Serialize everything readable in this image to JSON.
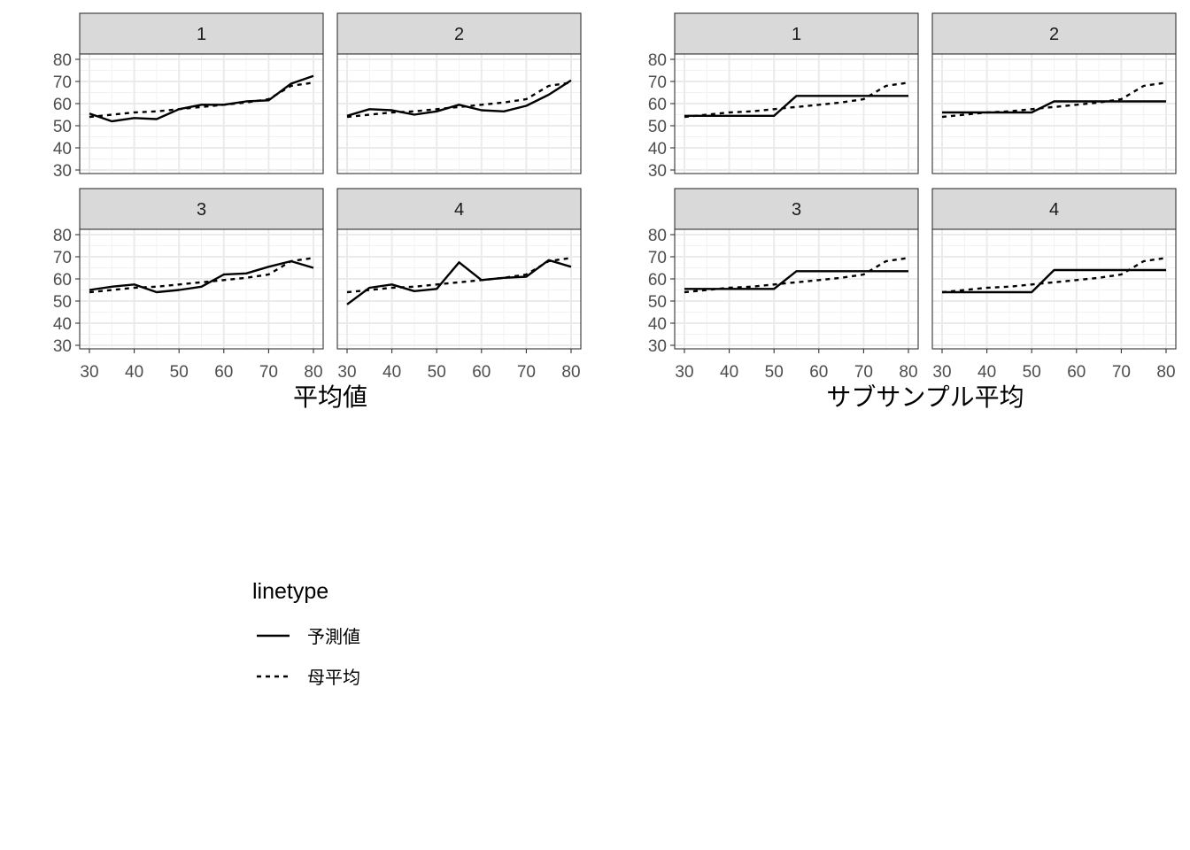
{
  "chart_data": [
    {
      "type": "line",
      "xlabel": "平均値",
      "ylabel": "",
      "xlim": [
        30,
        80
      ],
      "ylim": [
        30,
        80
      ],
      "x_ticks": [
        "30",
        "40",
        "50",
        "60",
        "70",
        "80"
      ],
      "y_ticks": [
        "30",
        "40",
        "50",
        "60",
        "70",
        "80"
      ],
      "grid": true,
      "panels": [
        {
          "label": "1",
          "series": [
            {
              "name": "予測値",
              "x": [
                30,
                35,
                40,
                45,
                50,
                55,
                60,
                65,
                70,
                75,
                80
              ],
              "y": [
                55.5,
                52.0,
                53.5,
                53.0,
                57.5,
                59.5,
                59.5,
                61.0,
                61.5,
                69.0,
                72.5
              ]
            },
            {
              "name": "母平均",
              "x": [
                30,
                35,
                40,
                45,
                50,
                55,
                60,
                65,
                70,
                75,
                80
              ],
              "y": [
                54.0,
                55.0,
                56.0,
                56.5,
                57.5,
                58.5,
                59.5,
                60.5,
                62.0,
                68.0,
                69.5
              ]
            }
          ]
        },
        {
          "label": "2",
          "series": [
            {
              "name": "予測値",
              "x": [
                30,
                35,
                40,
                45,
                50,
                55,
                60,
                65,
                70,
                75,
                80
              ],
              "y": [
                54.5,
                57.5,
                57.0,
                55.0,
                56.5,
                59.5,
                57.0,
                56.5,
                59.0,
                64.0,
                70.5
              ]
            },
            {
              "name": "母平均",
              "x": [
                30,
                35,
                40,
                45,
                50,
                55,
                60,
                65,
                70,
                75,
                80
              ],
              "y": [
                54.0,
                55.0,
                56.0,
                56.5,
                57.5,
                58.5,
                59.5,
                60.5,
                62.0,
                68.0,
                69.5
              ]
            }
          ]
        },
        {
          "label": "3",
          "series": [
            {
              "name": "予測値",
              "x": [
                30,
                35,
                40,
                45,
                50,
                55,
                60,
                65,
                70,
                75,
                80
              ],
              "y": [
                55.0,
                56.5,
                57.5,
                54.0,
                55.0,
                56.5,
                62.0,
                62.5,
                65.5,
                68.0,
                65.0
              ]
            },
            {
              "name": "母平均",
              "x": [
                30,
                35,
                40,
                45,
                50,
                55,
                60,
                65,
                70,
                75,
                80
              ],
              "y": [
                54.0,
                55.0,
                56.0,
                56.5,
                57.5,
                58.5,
                59.5,
                60.5,
                62.0,
                68.0,
                69.5
              ]
            }
          ]
        },
        {
          "label": "4",
          "series": [
            {
              "name": "予測値",
              "x": [
                30,
                35,
                40,
                45,
                50,
                55,
                60,
                65,
                70,
                75,
                80
              ],
              "y": [
                48.5,
                56.0,
                57.5,
                54.5,
                55.5,
                67.5,
                59.5,
                60.5,
                61.0,
                68.5,
                65.5
              ]
            },
            {
              "name": "母平均",
              "x": [
                30,
                35,
                40,
                45,
                50,
                55,
                60,
                65,
                70,
                75,
                80
              ],
              "y": [
                54.0,
                55.0,
                56.0,
                56.5,
                57.5,
                58.5,
                59.5,
                60.5,
                62.0,
                68.0,
                69.5
              ]
            }
          ]
        }
      ]
    },
    {
      "type": "line",
      "xlabel": "サブサンプル平均",
      "ylabel": "",
      "xlim": [
        30,
        80
      ],
      "ylim": [
        30,
        80
      ],
      "x_ticks": [
        "30",
        "40",
        "50",
        "60",
        "70",
        "80"
      ],
      "y_ticks": [
        "30",
        "40",
        "50",
        "60",
        "70",
        "80"
      ],
      "grid": true,
      "panels": [
        {
          "label": "1",
          "series": [
            {
              "name": "予測値",
              "x": [
                30,
                50,
                55,
                80
              ],
              "y": [
                54.5,
                54.5,
                63.5,
                63.5
              ]
            },
            {
              "name": "母平均",
              "x": [
                30,
                35,
                40,
                45,
                50,
                55,
                60,
                65,
                70,
                75,
                80
              ],
              "y": [
                54.0,
                55.0,
                56.0,
                56.5,
                57.5,
                58.5,
                59.5,
                60.5,
                62.0,
                68.0,
                69.5
              ]
            }
          ]
        },
        {
          "label": "2",
          "series": [
            {
              "name": "予測値",
              "x": [
                30,
                50,
                55,
                80
              ],
              "y": [
                56.0,
                56.0,
                61.0,
                61.0
              ]
            },
            {
              "name": "母平均",
              "x": [
                30,
                35,
                40,
                45,
                50,
                55,
                60,
                65,
                70,
                75,
                80
              ],
              "y": [
                54.0,
                55.0,
                56.0,
                56.5,
                57.5,
                58.5,
                59.5,
                60.5,
                62.0,
                68.0,
                69.5
              ]
            }
          ]
        },
        {
          "label": "3",
          "series": [
            {
              "name": "予測値",
              "x": [
                30,
                50,
                55,
                80
              ],
              "y": [
                55.5,
                55.5,
                63.5,
                63.5
              ]
            },
            {
              "name": "母平均",
              "x": [
                30,
                35,
                40,
                45,
                50,
                55,
                60,
                65,
                70,
                75,
                80
              ],
              "y": [
                54.0,
                55.0,
                56.0,
                56.5,
                57.5,
                58.5,
                59.5,
                60.5,
                62.0,
                68.0,
                69.5
              ]
            }
          ]
        },
        {
          "label": "4",
          "series": [
            {
              "name": "予測値",
              "x": [
                30,
                50,
                55,
                80
              ],
              "y": [
                54.0,
                54.0,
                64.0,
                64.0
              ]
            },
            {
              "name": "母平均",
              "x": [
                30,
                35,
                40,
                45,
                50,
                55,
                60,
                65,
                70,
                75,
                80
              ],
              "y": [
                54.0,
                55.0,
                56.0,
                56.5,
                57.5,
                58.5,
                59.5,
                60.5,
                62.0,
                68.0,
                69.5
              ]
            }
          ]
        }
      ]
    }
  ],
  "legend": {
    "title": "linetype",
    "placement": "bottom-left",
    "entries": [
      {
        "label": "予測値",
        "linetype": "solid"
      },
      {
        "label": "母平均",
        "linetype": "dashed"
      }
    ]
  },
  "colors": {
    "strip_fill": "#d9d9d9",
    "panel_border": "#333333",
    "grid_major": "#ebebeb",
    "grid_minor": "#f2f2f2",
    "line": "#000000",
    "tick_text": "#4d4d4d"
  }
}
